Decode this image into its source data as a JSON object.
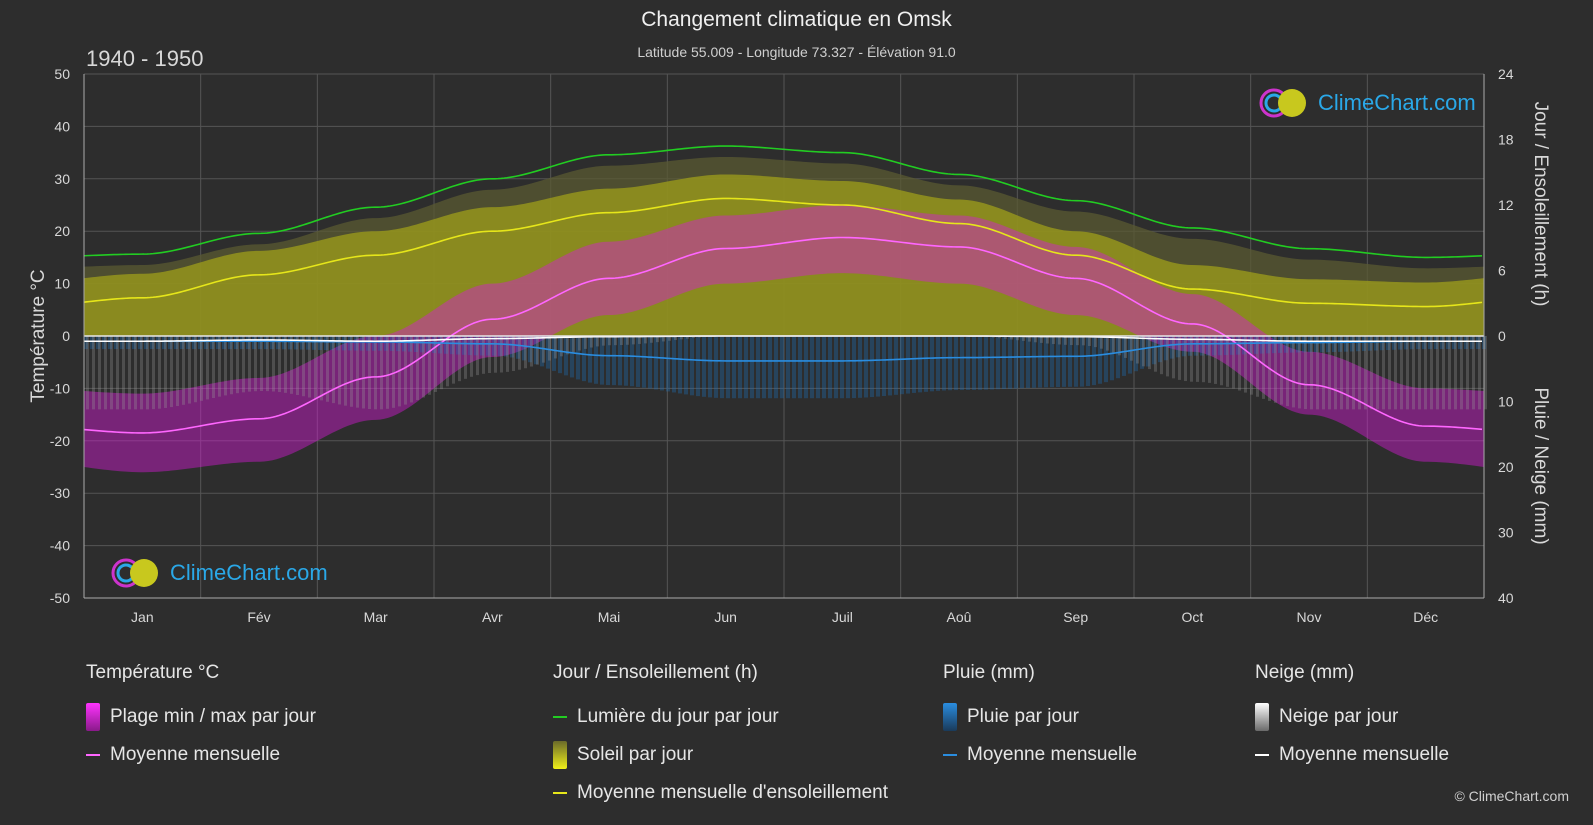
{
  "header": {
    "title": "Changement climatique en Omsk",
    "subtitle": "Latitude 55.009 - Longitude 73.327 - Élévation 91.0",
    "period": "1940 - 1950"
  },
  "logo": {
    "text": "ClimeChart.com"
  },
  "copyright": "© ClimeChart.com",
  "colors": {
    "background": "#2d2d2d",
    "daylight": "#22cc22",
    "sunshine_avg": "#e6e61a",
    "temp_avg": "#ff66ff",
    "rain_avg": "#2a8de0",
    "snow_avg": "#ffffff",
    "temp_range": "#d41ad4",
    "sunshine_fill": "#9a9a1c",
    "rain_fill": "#1e6fb8",
    "snow_fill": "#9a9a9a"
  },
  "legend": {
    "temperature": {
      "title": "Température °C",
      "items": [
        "Plage min / max par jour",
        "Moyenne mensuelle"
      ]
    },
    "sun": {
      "title": "Jour / Ensoleillement (h)",
      "items": [
        "Lumière du jour par jour",
        "Soleil par jour",
        "Moyenne mensuelle d'ensoleillement"
      ]
    },
    "rain": {
      "title": "Pluie (mm)",
      "items": [
        "Pluie par jour",
        "Moyenne mensuelle"
      ]
    },
    "snow": {
      "title": "Neige (mm)",
      "items": [
        "Neige par jour",
        "Moyenne mensuelle"
      ]
    }
  },
  "chart_data": {
    "type": "line",
    "x_categories": [
      "Jan",
      "Fév",
      "Mar",
      "Avr",
      "Mai",
      "Jun",
      "Juil",
      "Aoû",
      "Sep",
      "Oct",
      "Nov",
      "Déc"
    ],
    "axes": {
      "y_left": {
        "label": "Température °C",
        "range": [
          -50,
          50
        ],
        "ticks": [
          50,
          40,
          30,
          20,
          10,
          0,
          -10,
          -20,
          -30,
          -40,
          -50
        ]
      },
      "y_right_top": {
        "label": "Jour / Ensoleillement (h)",
        "range": [
          0,
          24
        ],
        "ticks": [
          24,
          18,
          12,
          6,
          0
        ]
      },
      "y_right_bottom": {
        "label": "Pluie / Neige (mm)",
        "range": [
          0,
          40
        ],
        "ticks": [
          10,
          20,
          30,
          40
        ]
      }
    },
    "grid": true,
    "series": [
      {
        "name": "Lumière du jour par jour",
        "axis": "hours",
        "values": [
          7.5,
          9.4,
          11.8,
          14.4,
          16.6,
          17.4,
          16.8,
          14.8,
          12.4,
          9.9,
          8.0,
          7.2
        ]
      },
      {
        "name": "Moyenne mensuelle d'ensoleillement",
        "axis": "hours",
        "values": [
          3.5,
          5.6,
          7.4,
          9.6,
          11.3,
          12.6,
          12.0,
          10.3,
          7.4,
          4.3,
          3.0,
          2.7
        ]
      },
      {
        "name": "Moyenne mensuelle",
        "group": "Température °C",
        "axis": "temperature",
        "values": [
          -18.5,
          -15.8,
          -7.8,
          3.2,
          11.0,
          16.7,
          18.8,
          17.0,
          11.0,
          2.3,
          -9.3,
          -17.2
        ]
      },
      {
        "name": "Moyenne mensuelle",
        "group": "Pluie (mm)",
        "axis": "precip",
        "values": [
          0.8,
          0.8,
          0.9,
          1.2,
          3.0,
          3.8,
          3.8,
          3.3,
          3.1,
          1.2,
          1.0,
          0.8
        ]
      },
      {
        "name": "Moyenne mensuelle",
        "group": "Neige (mm)",
        "axis": "precip",
        "values": [
          0.8,
          0.6,
          0.8,
          0.4,
          0.1,
          0.0,
          0.0,
          0.0,
          0.1,
          0.5,
          0.8,
          0.8
        ]
      },
      {
        "name": "Plage min / max par jour",
        "axis": "temperature",
        "min": [
          -26,
          -24,
          -16,
          -4,
          4,
          10,
          12,
          10,
          4,
          -3,
          -15,
          -24
        ],
        "max": [
          -11,
          -8,
          0,
          10,
          18,
          23,
          25,
          23,
          17,
          8,
          -3,
          -10
        ]
      }
    ]
  }
}
